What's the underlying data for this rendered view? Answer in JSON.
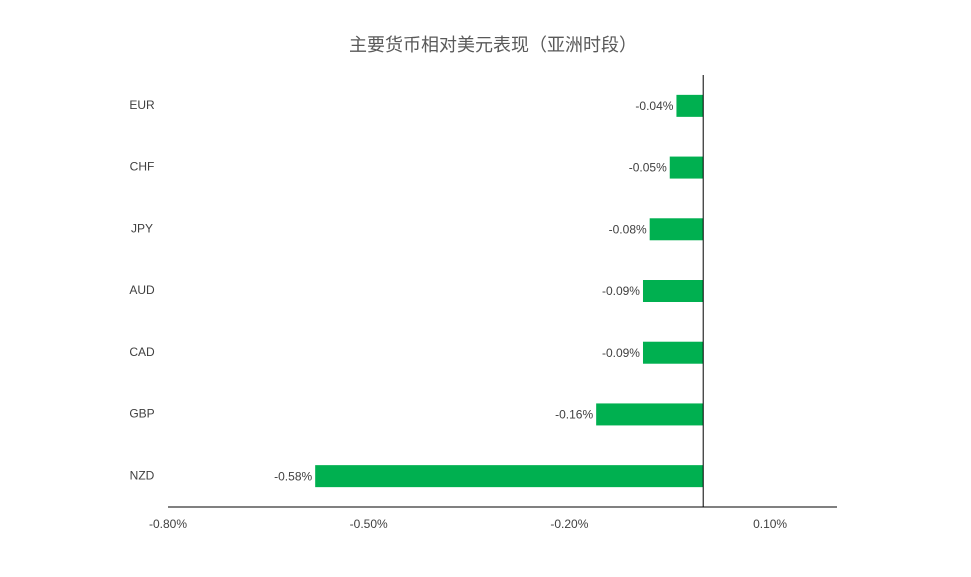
{
  "chart_data": {
    "type": "bar",
    "orientation": "horizontal",
    "title": "主要货币相对美元表现（亚洲时段）",
    "categories": [
      "EUR",
      "CHF",
      "JPY",
      "AUD",
      "CAD",
      "GBP",
      "NZD"
    ],
    "values": [
      -0.04,
      -0.05,
      -0.08,
      -0.09,
      -0.09,
      -0.16,
      -0.58
    ],
    "value_labels": [
      "-0.04%",
      "-0.05%",
      "-0.08%",
      "-0.09%",
      "-0.09%",
      "-0.16%",
      "-0.58%"
    ],
    "color": "#00b050",
    "xlim": [
      -0.8,
      0.2
    ],
    "xticks": [
      {
        "value": -0.8,
        "label": "-0.80%"
      },
      {
        "value": -0.5,
        "label": "-0.50%"
      },
      {
        "value": -0.2,
        "label": "-0.20%"
      },
      {
        "value": 0.1,
        "label": "0.10%"
      }
    ],
    "grid": false
  }
}
